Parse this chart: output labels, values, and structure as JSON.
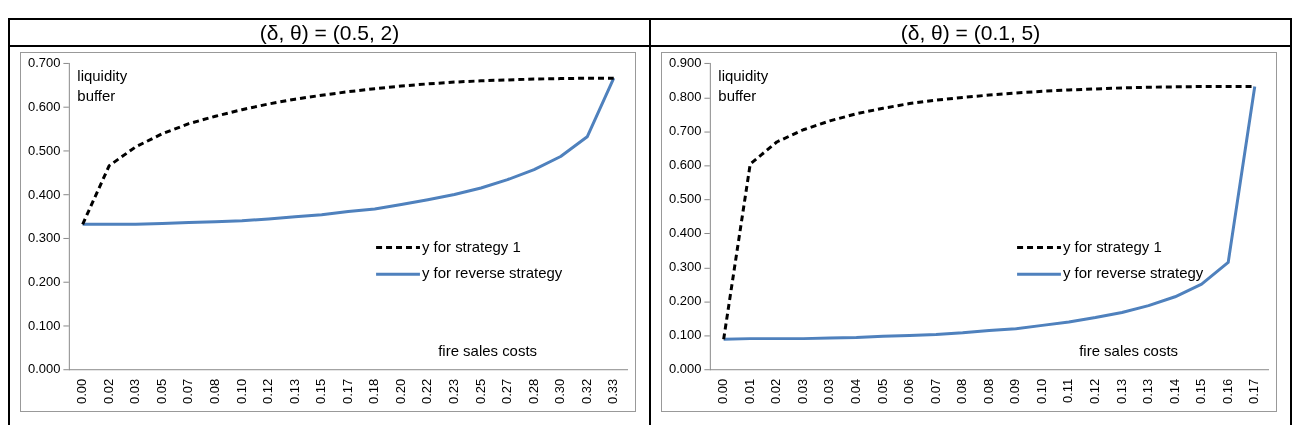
{
  "chart_data": [
    {
      "type": "line",
      "title": "(δ, θ) = (0.5, 2)",
      "ylabel": "liquidity buffer",
      "xlabel": "fire sales costs",
      "categories": [
        "0.00",
        "0.02",
        "0.03",
        "0.05",
        "0.07",
        "0.08",
        "0.10",
        "0.12",
        "0.13",
        "0.15",
        "0.17",
        "0.18",
        "0.20",
        "0.22",
        "0.23",
        "0.25",
        "0.27",
        "0.28",
        "0.30",
        "0.32",
        "0.33"
      ],
      "series": [
        {
          "name": "y for strategy 1",
          "color": "#000000",
          "line_style": "dashed",
          "values": [
            0.333,
            0.467,
            0.51,
            0.54,
            0.563,
            0.58,
            0.595,
            0.608,
            0.619,
            0.628,
            0.636,
            0.643,
            0.649,
            0.654,
            0.658,
            0.661,
            0.663,
            0.665,
            0.666,
            0.667,
            0.667
          ]
        },
        {
          "name": "y for reverse strategy",
          "color": "#4f81bd",
          "line_style": "solid",
          "values": [
            0.333,
            0.333,
            0.333,
            0.335,
            0.337,
            0.339,
            0.341,
            0.345,
            0.35,
            0.355,
            0.362,
            0.368,
            0.378,
            0.389,
            0.401,
            0.416,
            0.435,
            0.458,
            0.488,
            0.533,
            0.667
          ]
        }
      ],
      "ylim": [
        0,
        0.7
      ],
      "yticks": [
        {
          "value": 0,
          "label": "0.000"
        },
        {
          "value": 0.1,
          "label": "0.100"
        },
        {
          "value": 0.2,
          "label": "0.200"
        },
        {
          "value": 0.3,
          "label": "0.300"
        },
        {
          "value": 0.4,
          "label": "0.400"
        },
        {
          "value": 0.5,
          "label": "0.500"
        },
        {
          "value": 0.6,
          "label": "0.600"
        },
        {
          "value": 0.7,
          "label": "0.700"
        }
      ],
      "grid": false,
      "legend": "right",
      "marker": "none"
    },
    {
      "type": "line",
      "title": "(δ, θ) = (0.1, 5)",
      "ylabel": "liquidity buffer",
      "xlabel": "fire sales costs",
      "categories": [
        "0.00",
        "0.01",
        "0.02",
        "0.03",
        "0.03",
        "0.04",
        "0.05",
        "0.06",
        "0.07",
        "0.08",
        "0.08",
        "0.09",
        "0.10",
        "0.11",
        "0.12",
        "0.13",
        "0.13",
        "0.14",
        "0.15",
        "0.16",
        "0.17"
      ],
      "series": [
        {
          "name": "y for strategy 1",
          "color": "#000000",
          "line_style": "dashed",
          "values": [
            0.09,
            0.605,
            0.67,
            0.706,
            0.732,
            0.753,
            0.769,
            0.783,
            0.793,
            0.801,
            0.808,
            0.814,
            0.819,
            0.823,
            0.826,
            0.829,
            0.831,
            0.832,
            0.833,
            0.833,
            0.833
          ]
        },
        {
          "name": "y for reverse strategy",
          "color": "#4f81bd",
          "line_style": "solid",
          "values": [
            0.09,
            0.092,
            0.092,
            0.092,
            0.094,
            0.095,
            0.099,
            0.101,
            0.104,
            0.109,
            0.116,
            0.121,
            0.131,
            0.141,
            0.154,
            0.169,
            0.189,
            0.215,
            0.252,
            0.316,
            0.833
          ]
        }
      ],
      "ylim": [
        0,
        0.9
      ],
      "yticks": [
        {
          "value": 0,
          "label": "0.000"
        },
        {
          "value": 0.1,
          "label": "0.100"
        },
        {
          "value": 0.2,
          "label": "0.200"
        },
        {
          "value": 0.3,
          "label": "0.300"
        },
        {
          "value": 0.4,
          "label": "0.400"
        },
        {
          "value": 0.5,
          "label": "0.500"
        },
        {
          "value": 0.6,
          "label": "0.600"
        },
        {
          "value": 0.7,
          "label": "0.700"
        },
        {
          "value": 0.8,
          "label": "0.800"
        },
        {
          "value": 0.9,
          "label": "0.900"
        }
      ],
      "grid": false,
      "legend": "right",
      "marker": "none"
    }
  ]
}
